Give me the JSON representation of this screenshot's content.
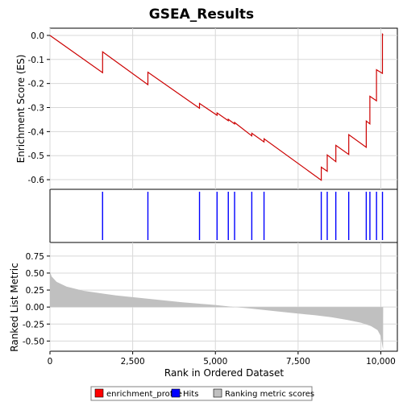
{
  "chart_data": {
    "type": "line",
    "title": "GSEA_Results",
    "xlabel": "Rank in Ordered Dataset",
    "xlim": [
      0,
      10500
    ],
    "x_ticks": [
      0,
      2500,
      5000,
      7500,
      10000
    ],
    "x_tick_labels": [
      "0",
      "2,500",
      "5,000",
      "7,500",
      "10,000"
    ],
    "grid": true,
    "legend_position": "bottom",
    "enrichment": {
      "ylabel": "Enrichment Score (ES)",
      "ylim": [
        -0.64,
        0.03
      ],
      "y_ticks": [
        0.0,
        -0.1,
        -0.2,
        -0.3,
        -0.4,
        -0.5,
        -0.6
      ],
      "y_tick_labels": [
        "0.0",
        "-0.1",
        "-0.2",
        "-0.3",
        "-0.4",
        "-0.5",
        "-0.6"
      ],
      "color": "#cc0000",
      "x": [
        0,
        1590,
        1590,
        2960,
        2960,
        4520,
        4520,
        5050,
        5050,
        5390,
        5390,
        5580,
        5580,
        6100,
        6100,
        6470,
        6470,
        8200,
        8200,
        8380,
        8380,
        8640,
        8640,
        9030,
        9030,
        9560,
        9560,
        9670,
        9670,
        9870,
        9870,
        10050,
        10050,
        10070
      ],
      "y": [
        0.0,
        -0.155,
        -0.068,
        -0.205,
        -0.153,
        -0.303,
        -0.283,
        -0.332,
        -0.322,
        -0.355,
        -0.349,
        -0.368,
        -0.362,
        -0.418,
        -0.407,
        -0.443,
        -0.43,
        -0.602,
        -0.548,
        -0.565,
        -0.497,
        -0.525,
        -0.457,
        -0.495,
        -0.413,
        -0.465,
        -0.356,
        -0.368,
        -0.253,
        -0.272,
        -0.143,
        -0.158,
        0.005,
        0.002
      ]
    },
    "hits": {
      "color": "#0000ff",
      "x": [
        1590,
        2960,
        4520,
        5050,
        5390,
        5580,
        6100,
        6470,
        8200,
        8380,
        8640,
        9030,
        9560,
        9670,
        9870,
        10050
      ]
    },
    "ranking": {
      "ylabel": "Ranked List Metric",
      "ylim": [
        -0.65,
        0.95
      ],
      "y_ticks": [
        0.75,
        0.5,
        0.25,
        0.0,
        -0.25,
        -0.5
      ],
      "y_tick_labels": [
        "0.75",
        "0.50",
        "0.25",
        "0.00",
        "-0.25",
        "-0.50"
      ],
      "color": "#c0c0c0",
      "x": [
        0,
        50,
        200,
        500,
        1000,
        2000,
        3000,
        4000,
        5000,
        5600,
        6000,
        7000,
        8000,
        8500,
        9000,
        9400,
        9700,
        9900,
        10000,
        10050,
        10070,
        10071
      ],
      "y": [
        0.52,
        0.45,
        0.37,
        0.3,
        0.24,
        0.17,
        0.12,
        0.07,
        0.03,
        0.0,
        -0.02,
        -0.07,
        -0.12,
        -0.15,
        -0.19,
        -0.23,
        -0.28,
        -0.34,
        -0.43,
        -0.58,
        -0.62,
        0.0
      ]
    },
    "legend": [
      {
        "label": "enrichment_profile",
        "color": "#ff0000"
      },
      {
        "label": "Hits",
        "color": "#0000ff"
      },
      {
        "label": "Ranking metric scores",
        "color": "#c0c0c0"
      }
    ]
  }
}
